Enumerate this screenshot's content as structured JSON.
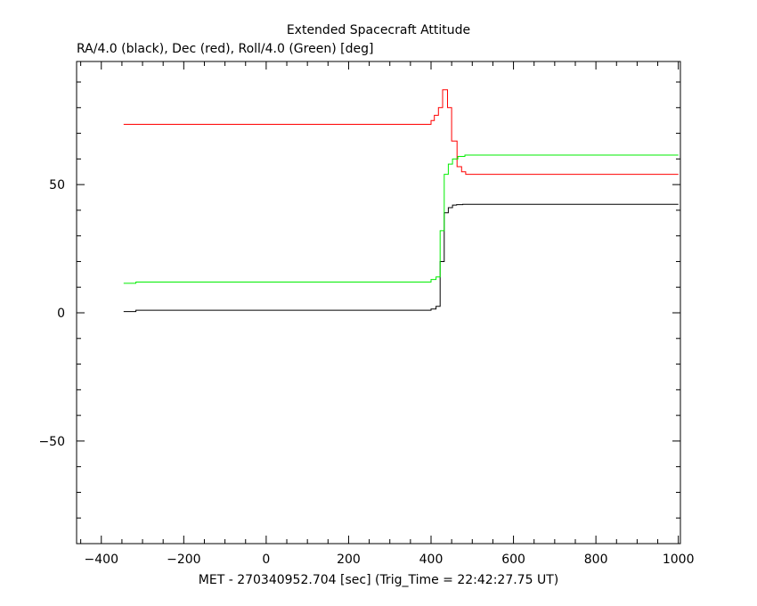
{
  "chart_data": {
    "type": "line",
    "title": "Extended Spacecraft Attitude",
    "subtitle": "RA/4.0 (black), Dec (red), Roll/4.0 (Green) [deg]",
    "xlabel": "MET - 270340952.704 [sec] (Trig_Time = 22:42:27.75 UT)",
    "ylabel": "",
    "xlim": [
      -460,
      1005
    ],
    "ylim": [
      -90,
      98
    ],
    "x_ticks": [
      -400,
      -200,
      0,
      200,
      400,
      600,
      800,
      1000
    ],
    "x_tick_labels": [
      "−400",
      "−200",
      "0",
      "200",
      "400",
      "600",
      "800",
      "1000"
    ],
    "x_minor_step": 50,
    "y_ticks": [
      -50,
      0,
      50
    ],
    "y_tick_labels": [
      "−50",
      "0",
      "50"
    ],
    "y_minor_step": 10,
    "grid": false,
    "series": [
      {
        "color": "#000000",
        "x": [
          -346,
          -316,
          -316,
          400,
          400,
          412,
          412,
          422,
          422,
          432,
          432,
          442,
          442,
          452,
          452,
          462,
          462,
          477,
          477,
          1000
        ],
        "y": [
          0.5,
          0.5,
          1.0,
          1.0,
          1.5,
          1.5,
          2.5,
          2.5,
          20,
          20,
          39,
          39,
          41,
          41,
          42,
          42,
          42.2,
          42.2,
          42.3,
          42.3
        ]
      },
      {
        "color": "#ff0000",
        "x": [
          -346,
          400,
          400,
          408,
          408,
          418,
          418,
          428,
          428,
          440,
          440,
          450,
          450,
          463,
          463,
          474,
          474,
          484,
          484,
          1000
        ],
        "y": [
          73.5,
          73.5,
          75,
          75,
          77,
          77,
          80,
          80,
          87,
          87,
          80,
          80,
          67,
          67,
          57,
          57,
          55,
          55,
          54,
          54
        ]
      },
      {
        "color": "#00ee00",
        "x": [
          -346,
          -316,
          -316,
          400,
          400,
          412,
          412,
          422,
          422,
          432,
          432,
          442,
          442,
          452,
          452,
          465,
          465,
          482,
          482,
          1000
        ],
        "y": [
          11.5,
          11.5,
          12,
          12,
          13,
          13,
          14,
          14,
          32,
          32,
          54,
          54,
          58,
          58,
          60,
          60,
          61,
          61,
          61.5,
          61.5
        ]
      }
    ]
  }
}
